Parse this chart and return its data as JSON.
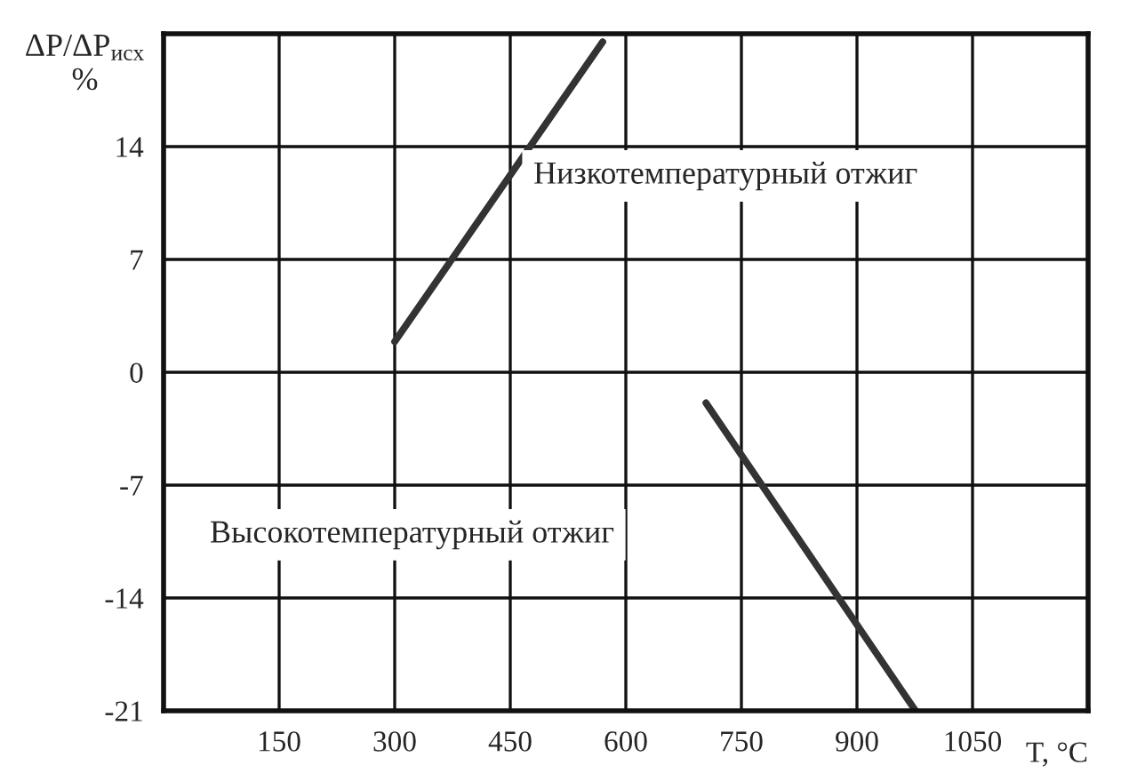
{
  "chart_data": {
    "type": "line",
    "xlabel": "T, °C",
    "ylabel": "ΔP/ΔP$_{исх}$\n%",
    "series": [
      {
        "x": [
          300,
          570
        ],
        "values": [
          1.9,
          20.5
        ],
        "color": "#333333"
      },
      {
        "x": [
          704,
          976
        ],
        "values": [
          -1.9,
          -21
        ],
        "color": "#333333"
      }
    ],
    "xlim": [
      0,
      1200
    ],
    "xticks": [
      150,
      300,
      450,
      600,
      750,
      900,
      1050
    ],
    "ylim": [
      -21,
      21
    ],
    "yticks": [
      -21,
      -14,
      -7,
      0,
      7,
      14
    ],
    "grid": true,
    "line_style": "solid",
    "marker": "none",
    "annotations": [
      "Низкотемпературный отжиг",
      "Высокотемпературный отжиг"
    ]
  }
}
